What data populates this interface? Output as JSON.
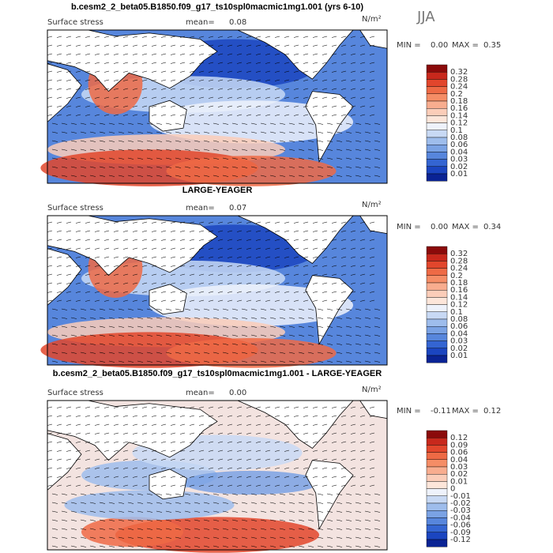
{
  "season": "JJA",
  "panels": [
    {
      "title": "b.cesm2_2_beta05.B1850.f09_g17_ts10spl0macmic1mg1.001 (yrs 6-10)",
      "variable": "Surface stress",
      "mean_label": "mean=",
      "mean": "0.08",
      "units": "N/m²",
      "min_label": "MIN =",
      "min": "0.00",
      "max_label": "MAX =",
      "max": "0.35",
      "style": "field",
      "colorbar": {
        "labels": [
          "0.32",
          "0.28",
          "0.24",
          "0.2",
          "0.18",
          "0.16",
          "0.14",
          "0.12",
          "0.1",
          "0.08",
          "0.06",
          "0.04",
          "0.03",
          "0.02",
          "0.01"
        ],
        "colors": [
          "#8b0a0a",
          "#c8281c",
          "#e2462c",
          "#ee6a45",
          "#f58d66",
          "#f8ad8f",
          "#fbcdb9",
          "#fde6da",
          "#eef2fb",
          "#c8d9f4",
          "#9ebdec",
          "#7aa2e4",
          "#5786dc",
          "#3465d2",
          "#1b45c0",
          "#0a2394"
        ]
      }
    },
    {
      "title": "LARGE-YEAGER",
      "variable": "Surface stress",
      "mean_label": "mean=",
      "mean": "0.07",
      "units": "N/m²",
      "min_label": "MIN =",
      "min": "0.00",
      "max_label": "MAX =",
      "max": "0.34",
      "style": "field",
      "colorbar": {
        "labels": [
          "0.32",
          "0.28",
          "0.24",
          "0.2",
          "0.18",
          "0.16",
          "0.14",
          "0.12",
          "0.1",
          "0.08",
          "0.06",
          "0.04",
          "0.03",
          "0.02",
          "0.01"
        ],
        "colors": [
          "#8b0a0a",
          "#c8281c",
          "#e2462c",
          "#ee6a45",
          "#f58d66",
          "#f8ad8f",
          "#fbcdb9",
          "#fde6da",
          "#eef2fb",
          "#c8d9f4",
          "#9ebdec",
          "#7aa2e4",
          "#5786dc",
          "#3465d2",
          "#1b45c0",
          "#0a2394"
        ]
      }
    },
    {
      "title": "b.cesm2_2_beta05.B1850.f09_g17_ts10spl0macmic1mg1.001 - LARGE-YEAGER",
      "variable": "Surface stress",
      "mean_label": "mean=",
      "mean": "0.00",
      "units": "N/m²",
      "min_label": "MIN =",
      "min": "-0.11",
      "max_label": "MAX =",
      "max": "0.12",
      "style": "diff",
      "colorbar": {
        "labels": [
          "0.12",
          "0.09",
          "0.06",
          "0.04",
          "0.03",
          "0.02",
          "0.01",
          "0",
          "-0.01",
          "-0.02",
          "-0.03",
          "-0.04",
          "-0.06",
          "-0.09",
          "-0.12"
        ],
        "colors": [
          "#8b0a0a",
          "#c8281c",
          "#e2462c",
          "#ee6a45",
          "#f58d66",
          "#f8ad8f",
          "#fbcdb9",
          "#fde6da",
          "#eef2fb",
          "#c8d9f4",
          "#9ebdec",
          "#7aa2e4",
          "#5786dc",
          "#3465d2",
          "#1b45c0",
          "#0a2394"
        ]
      }
    }
  ]
}
